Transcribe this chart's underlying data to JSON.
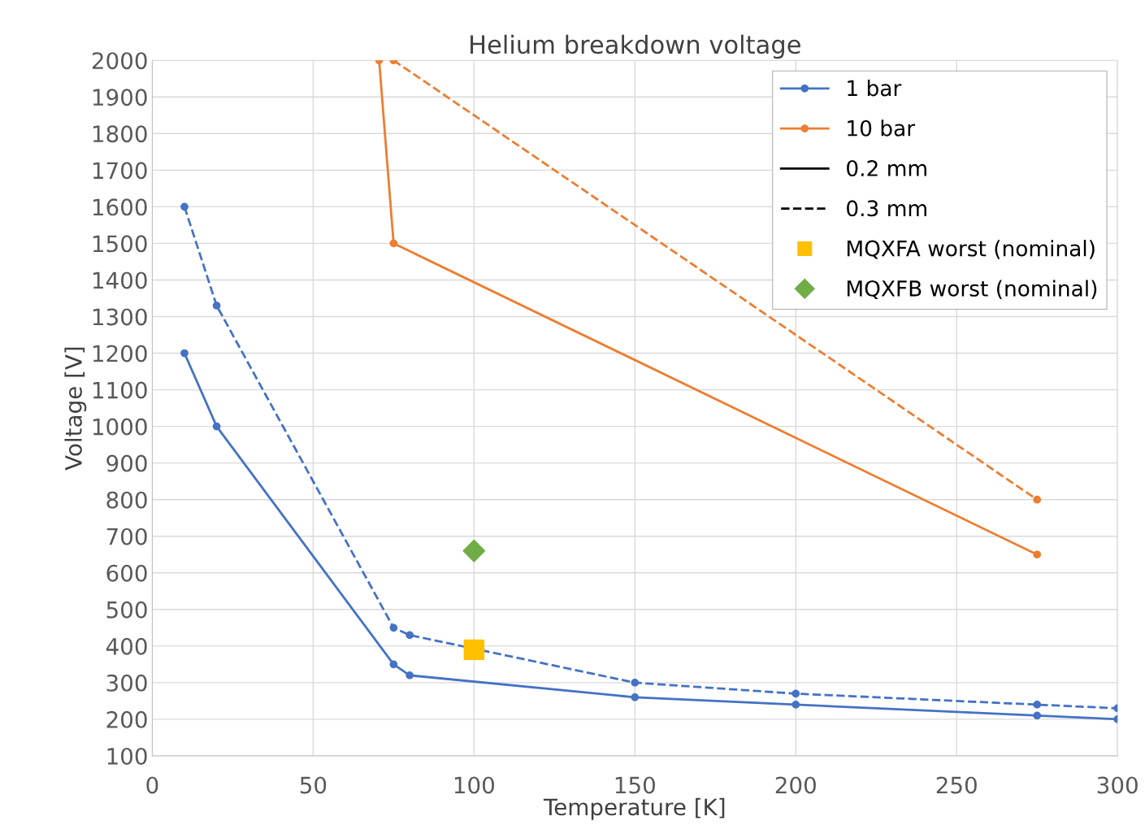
{
  "chart_data": {
    "type": "line",
    "title": "Helium breakdown voltage",
    "xlabel": "Temperature [K]",
    "ylabel": "Voltage [V]",
    "xlim": [
      0,
      300
    ],
    "xticks": [
      0,
      50,
      100,
      150,
      200,
      250,
      300
    ],
    "ylim": [
      100,
      2000
    ],
    "yticks": [
      100,
      200,
      300,
      400,
      500,
      600,
      700,
      800,
      900,
      1000,
      1100,
      1200,
      1300,
      1400,
      1500,
      1600,
      1700,
      1800,
      1900,
      2000
    ],
    "grid": true,
    "legend": "top right",
    "series": [
      {
        "name": "1 bar",
        "color": "#4472c4",
        "marker": "circle",
        "line_style": "solid",
        "x": [
          10,
          20,
          75,
          80,
          150,
          200,
          275,
          300
        ],
        "values": [
          1200,
          1000,
          350,
          320,
          260,
          240,
          210,
          200
        ]
      },
      {
        "color": "#4472c4",
        "marker": "circle",
        "line_style": "dashed",
        "x": [
          10,
          20,
          75,
          80,
          150,
          200,
          275,
          300
        ],
        "values": [
          1600,
          1330,
          450,
          430,
          300,
          270,
          240,
          230
        ]
      },
      {
        "name": "10 bar",
        "color": "#ed7d31",
        "marker": "circle",
        "line_style": "solid",
        "x": [
          70.5,
          75,
          275
        ],
        "values": [
          2000,
          1500,
          650
        ]
      },
      {
        "color": "#ed7d31",
        "marker": "circle",
        "line_style": "dashed",
        "x": [
          75,
          275
        ],
        "values": [
          2000,
          800
        ]
      },
      {
        "type": "scatter",
        "name": "MQXFA worst (nominal)",
        "color": "#ffc000",
        "marker": "square",
        "x": [
          100
        ],
        "values": [
          390
        ]
      },
      {
        "type": "scatter",
        "name": "MQXFB worst (nominal)",
        "color": "#70ad47",
        "marker": "diamond",
        "x": [
          100
        ],
        "values": [
          660
        ]
      },
      {
        "name": "0.2 mm",
        "color": "#000000",
        "marker": "none",
        "line_style": "solid"
      },
      {
        "name": "0.3 mm",
        "color": "#000000",
        "marker": "none",
        "line_style": "dashed"
      }
    ]
  }
}
